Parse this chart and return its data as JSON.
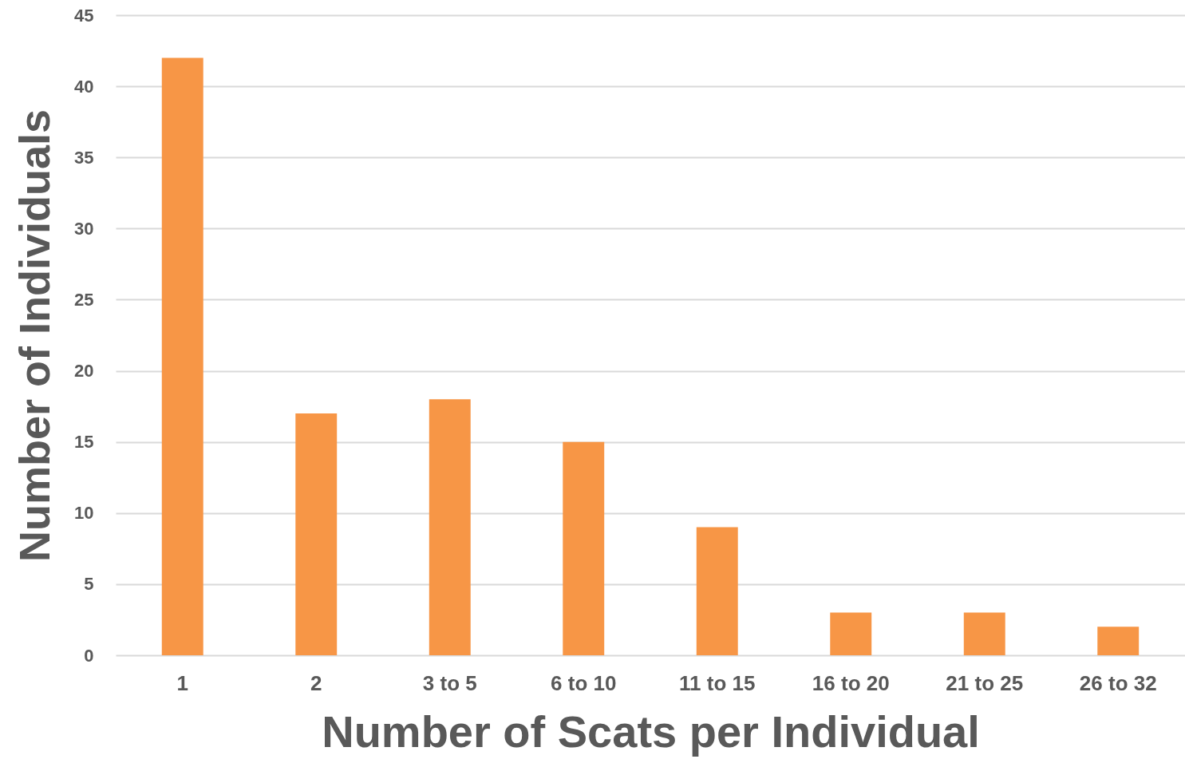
{
  "chart_data": {
    "type": "bar",
    "xlabel": "Number of Scats per Individual",
    "ylabel": "Number of Individuals",
    "categories": [
      "1",
      "2",
      "3 to 5",
      "6 to 10",
      "11 to 15",
      "16 to 20",
      "21 to 25",
      "26 to 32"
    ],
    "values": [
      42,
      17,
      18,
      15,
      9,
      3,
      3,
      2
    ],
    "color": "#f79646",
    "ylim": [
      0,
      45
    ],
    "yticks": [
      0,
      5,
      10,
      15,
      20,
      25,
      30,
      35,
      40,
      45
    ],
    "grid": "y"
  }
}
